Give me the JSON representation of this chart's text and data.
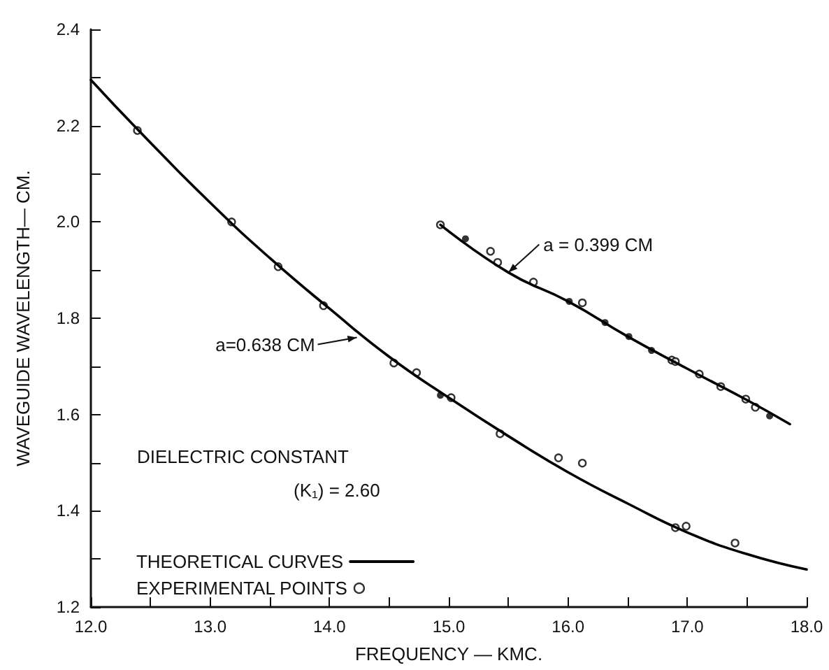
{
  "chart_data": {
    "type": "line",
    "xlabel": "FREQUENCY — KMC.",
    "ylabel": "WAVEGUIDE WAVELENGTH— CM.",
    "xlim": [
      12.0,
      18.0
    ],
    "xticks": [
      {
        "value": 12,
        "label": "12.0"
      },
      {
        "value": 12.5,
        "label": null
      },
      {
        "value": 13,
        "label": "13.0"
      },
      {
        "value": 13.5,
        "label": null
      },
      {
        "value": 14,
        "label": "14.0"
      },
      {
        "value": 14.5,
        "label": null
      },
      {
        "value": 15,
        "label": "15.0"
      },
      {
        "value": 15.5,
        "label": null
      },
      {
        "value": 16,
        "label": "16.0"
      },
      {
        "value": 16.5,
        "label": null
      },
      {
        "value": 17,
        "label": "17.0"
      },
      {
        "value": 17.5,
        "label": null
      },
      {
        "value": 18,
        "label": "18.0"
      }
    ],
    "ylim": [
      1.2,
      2.4
    ],
    "yticks": [
      {
        "value": 1.2,
        "label": "1.2"
      },
      {
        "value": 1.3,
        "label": null
      },
      {
        "value": 1.4,
        "label": "1.4"
      },
      {
        "value": 1.5,
        "label": null
      },
      {
        "value": 1.6,
        "label": "1.6"
      },
      {
        "value": 1.7,
        "label": null
      },
      {
        "value": 1.8,
        "label": "1.8"
      },
      {
        "value": 1.9,
        "label": null
      },
      {
        "value": 2.0,
        "label": "2.0"
      },
      {
        "value": 2.1,
        "label": null
      },
      {
        "value": 2.2,
        "label": "2.2"
      },
      {
        "value": 2.3,
        "label": null
      },
      {
        "value": 2.4,
        "label": "2.4"
      }
    ],
    "grid": false,
    "legend": "bottom left",
    "series": [
      {
        "type": "line",
        "name": "THEORETICAL CURVES",
        "color": "#000000",
        "marker": "none",
        "line_style": "solid",
        "x": [
          12.0,
          12.4,
          13.0,
          13.5,
          14.0,
          14.5,
          15.0,
          15.5,
          16.0,
          16.5,
          17.0,
          17.5,
          18.0
        ],
        "values": [
          2.295,
          2.19,
          2.04,
          1.925,
          1.82,
          1.72,
          1.635,
          1.555,
          1.48,
          1.415,
          1.355,
          1.31,
          1.278
        ]
      },
      {
        "type": "line",
        "color": "#000000",
        "marker": "none",
        "line_style": "solid",
        "x": [
          14.93,
          15.5,
          16.0,
          16.5,
          17.0,
          17.5,
          17.86
        ],
        "values": [
          1.994,
          1.895,
          1.835,
          1.762,
          1.695,
          1.63,
          1.58
        ]
      },
      {
        "type": "scatter",
        "name": "EXPERIMENTAL POINTS",
        "color": "#000000",
        "marker": "circle",
        "x": [
          12.39,
          13.18,
          13.57,
          13.95,
          14.54,
          14.73,
          15.02,
          15.43,
          15.92,
          16.12,
          16.9,
          16.99,
          17.4,
          14.93,
          15.35,
          15.41,
          15.71,
          16.12,
          16.87,
          16.9,
          17.1,
          17.28,
          17.49,
          17.57
        ],
        "values": [
          2.19,
          2.0,
          1.907,
          1.826,
          1.707,
          1.687,
          1.635,
          1.56,
          1.51,
          1.499,
          1.365,
          1.368,
          1.333,
          1.994,
          1.939,
          1.916,
          1.875,
          1.832,
          1.713,
          1.71,
          1.684,
          1.658,
          1.632,
          1.615
        ]
      },
      {
        "type": "scatter",
        "color": "#000000",
        "marker": "circle",
        "x": [
          14.93,
          15.14,
          16.01,
          16.31,
          16.51,
          16.7,
          17.69
        ],
        "values": [
          1.64,
          1.965,
          1.835,
          1.791,
          1.762,
          1.733,
          1.597
        ]
      }
    ],
    "annotations": [
      "DIELECTRIC CONSTANT",
      "(K₁) = 2.60",
      {
        "text": "a=0.638 CM",
        "x": 14.23,
        "y": 1.76
      },
      {
        "text": "a = 0.399 CM",
        "x": 15.5,
        "y": 1.895
      }
    ]
  }
}
